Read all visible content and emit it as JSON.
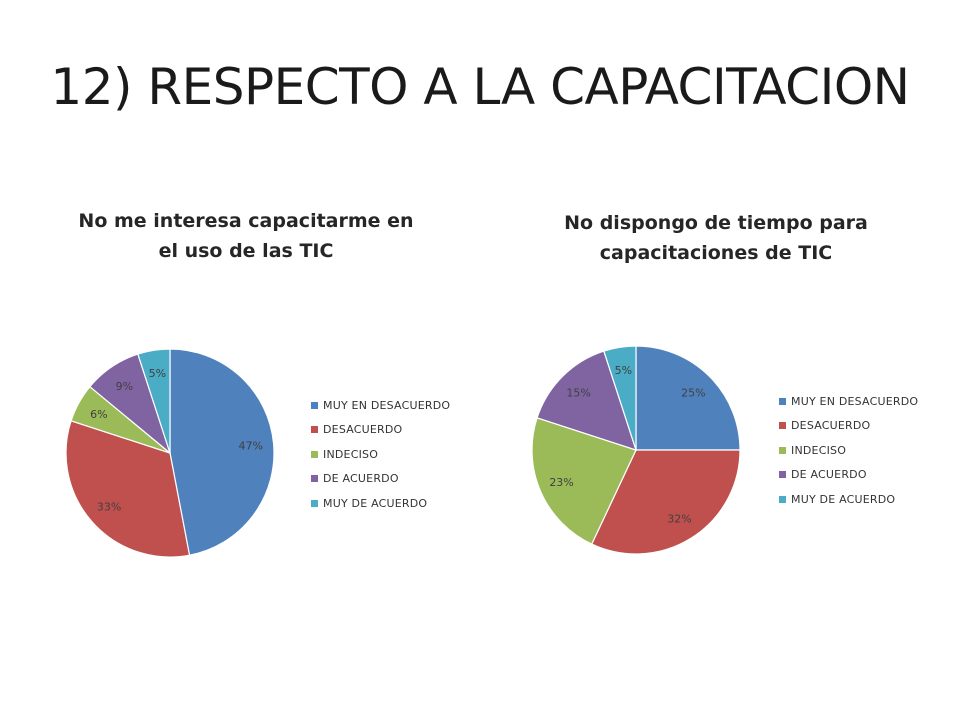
{
  "slide": {
    "title": "12) RESPECTO A LA CAPACITACION"
  },
  "colors": [
    "#4F81BD",
    "#C0504D",
    "#9BBB59",
    "#8064A2",
    "#4BACC6"
  ],
  "chart_data": [
    {
      "type": "pie",
      "title_lines": [
        "No me  interesa  capacitarme en",
        "el uso de  las TIC"
      ],
      "categories": [
        "MUY EN DESACUERDO",
        "DESACUERDO",
        "INDECISO",
        "DE ACUERDO",
        "MUY DE ACUERDO"
      ],
      "values": [
        47,
        33,
        6,
        9,
        5
      ],
      "labels": [
        "47%",
        "33%",
        "6%",
        "9%",
        "5%"
      ],
      "legend_position": "right"
    },
    {
      "type": "pie",
      "title_lines": [
        "No dispongo de tiempo para",
        "capacitaciones de TIC"
      ],
      "categories": [
        "MUY EN DESACUERDO",
        "DESACUERDO",
        "INDECISO",
        "DE ACUERDO",
        "MUY DE ACUERDO"
      ],
      "values": [
        25,
        32,
        23,
        15,
        5
      ],
      "labels": [
        "25%",
        "32%",
        "23%",
        "15%",
        "5%"
      ],
      "legend_position": "right"
    }
  ]
}
